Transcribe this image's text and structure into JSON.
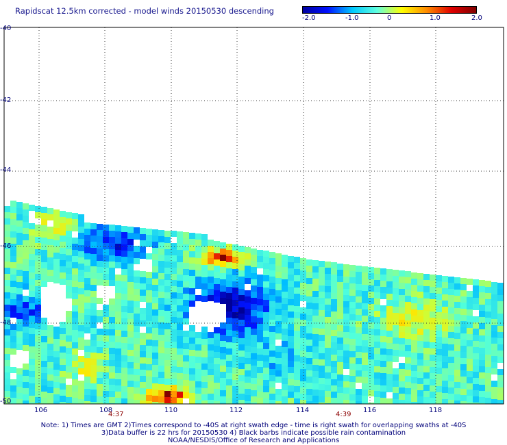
{
  "title": "Rapidscat 12.5km corrected - model winds 20150530 descending",
  "colorbar": {
    "labels": [
      "-2.0",
      "-1.0",
      "0",
      "1.0",
      "2.0"
    ],
    "min": -2.0,
    "max": 2.0,
    "colors": [
      "#0000a0",
      "#0010ff",
      "#00c8ff",
      "#60ffe0",
      "#ffff00",
      "#ff8c00",
      "#e00000",
      "#800000"
    ]
  },
  "lat_labels": [
    "-40",
    "-42",
    "-44",
    "-46",
    "-48",
    "-50"
  ],
  "lon_labels": [
    "106",
    "108",
    "110",
    "112",
    "114",
    "116",
    "118"
  ],
  "times": [
    "4:37",
    "4:39"
  ],
  "notes": [
    "Note: 1) Times are GMT 2)Times correspond to -40S at right swath edge - time is right swath for overlapping swaths at -40S",
    "3)Data buffer is 22 hrs for 20150530 4) Black barbs indicate possible rain contamination",
    "NOAA/NESDIS/Office of Research and Applications"
  ]
}
